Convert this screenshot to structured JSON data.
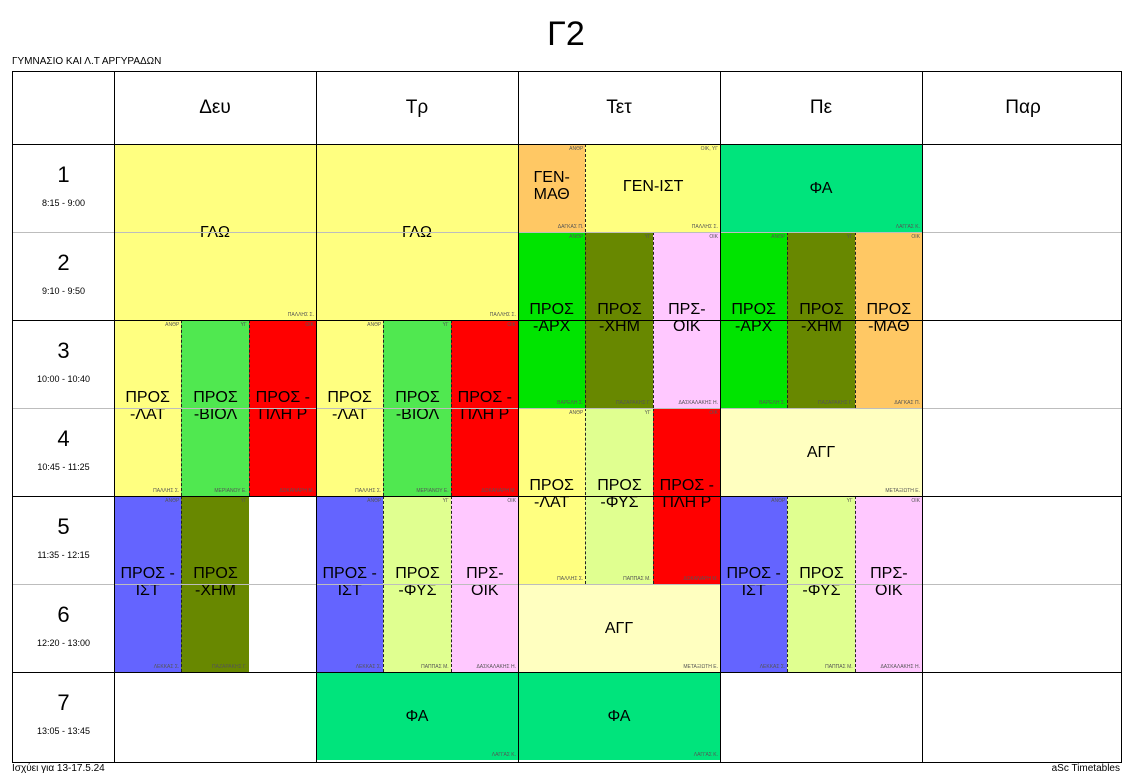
{
  "title": "Γ2",
  "school": "ΓΥΜΝΑΣΙΟ ΚΑΙ Λ.Τ ΑΡΓΥΡΑΔΩΝ",
  "valid_for": "Ισχύει για 13-17.5.24",
  "brand": "aSc Timetables",
  "days": [
    "Δευ",
    "Τρ",
    "Τετ",
    "Πε",
    "Παρ"
  ],
  "periods": [
    {
      "num": "1",
      "time": "8:15 - 9:00"
    },
    {
      "num": "2",
      "time": "9:10 - 9:50"
    },
    {
      "num": "3",
      "time": "10:00 - 10:40"
    },
    {
      "num": "4",
      "time": "10:45 - 11:25"
    },
    {
      "num": "5",
      "time": "11:35 - 12:15"
    },
    {
      "num": "6",
      "time": "12:20 - 13:00"
    },
    {
      "num": "7",
      "time": "13:05 - 13:45"
    }
  ],
  "colors": {
    "yellow": "#ffff80",
    "green": "#00e400",
    "olive": "#688800",
    "pink": "#ffc8ff",
    "red": "#ff0000",
    "orange": "#ffc864",
    "mint": "#00e47c",
    "lightgreen": "#50e850",
    "blue": "#6464ff",
    "palegreen": "#e0ff90",
    "cream": "#ffffc0"
  },
  "lessons": [
    {
      "subject": "ΓΛΩ",
      "teacher": "ΠΑΛΛΗΣ Σ.",
      "group": "",
      "day": 0,
      "start": 1,
      "span": 2,
      "part": 0,
      "parts": 1,
      "color": "yellow"
    },
    {
      "subject": "ΠΡΟΣ -ΛΑΤ",
      "teacher": "ΠΑΛΛΗΣ Σ.",
      "group": "ΑΝΘΡ",
      "day": 0,
      "start": 3,
      "span": 2,
      "part": 0,
      "parts": 3,
      "color": "yellow"
    },
    {
      "subject": "ΠΡΟΣ -ΒΙΟΛ",
      "teacher": "ΜΕΡΙΑΝΟΥ Ε.",
      "group": "ΥΓ",
      "day": 0,
      "start": 3,
      "span": 2,
      "part": 1,
      "parts": 3,
      "color": "lightgreen"
    },
    {
      "subject": "ΠΡΟΣ - ΠΛΗ Ρ",
      "teacher": "ΔΟΚΑΝΑΡΗ Μ.",
      "group": "ΟΙΚ",
      "day": 0,
      "start": 3,
      "span": 2,
      "part": 2,
      "parts": 3,
      "color": "red"
    },
    {
      "subject": "ΠΡΟΣ - ΙΣΤ",
      "teacher": "ΛΕΚΚΑΣ Σ.",
      "group": "ΑΝΘΡ",
      "day": 0,
      "start": 5,
      "span": 2,
      "part": 0,
      "parts": 3,
      "color": "blue"
    },
    {
      "subject": "ΠΡΟΣ -ΧΗΜ",
      "teacher": "ΠΑΖΑΡΑΚΗΣ Γ.",
      "group": "ΥΓ",
      "day": 0,
      "start": 5,
      "span": 2,
      "part": 1,
      "parts": 3,
      "color": "olive"
    },
    {
      "subject": "ΓΛΩ",
      "teacher": "ΠΑΛΛΗΣ Σ.",
      "group": "",
      "day": 1,
      "start": 1,
      "span": 2,
      "part": 0,
      "parts": 1,
      "color": "yellow"
    },
    {
      "subject": "ΠΡΟΣ -ΛΑΤ",
      "teacher": "ΠΑΛΛΗΣ Σ.",
      "group": "ΑΝΘΡ",
      "day": 1,
      "start": 3,
      "span": 2,
      "part": 0,
      "parts": 3,
      "color": "yellow"
    },
    {
      "subject": "ΠΡΟΣ -ΒΙΟΛ",
      "teacher": "ΜΕΡΙΑΝΟΥ Ε.",
      "group": "ΥΓ",
      "day": 1,
      "start": 3,
      "span": 2,
      "part": 1,
      "parts": 3,
      "color": "lightgreen"
    },
    {
      "subject": "ΠΡΟΣ - ΠΛΗ Ρ",
      "teacher": "ΔΟΚΑΝΑΡΗ Μ.",
      "group": "ΟΙΚ",
      "day": 1,
      "start": 3,
      "span": 2,
      "part": 2,
      "parts": 3,
      "color": "red"
    },
    {
      "subject": "ΠΡΟΣ - ΙΣΤ",
      "teacher": "ΛΕΚΚΑΣ Σ.",
      "group": "ΑΝΘΡ",
      "day": 1,
      "start": 5,
      "span": 2,
      "part": 0,
      "parts": 3,
      "color": "blue"
    },
    {
      "subject": "ΠΡΟΣ -ΦΥΣ",
      "teacher": "ΠΑΠΠΑΣ Μ.",
      "group": "ΥΓ",
      "day": 1,
      "start": 5,
      "span": 2,
      "part": 1,
      "parts": 3,
      "color": "palegreen"
    },
    {
      "subject": "ΠΡΣ- ΟΙΚ",
      "teacher": "ΔΑΣΚΑΛΑΚΗΣ Η.",
      "group": "ΟΙΚ",
      "day": 1,
      "start": 5,
      "span": 2,
      "part": 2,
      "parts": 3,
      "color": "pink"
    },
    {
      "subject": "ΦΑ",
      "teacher": "ΛΑΓΓΑΣ Κ.",
      "group": "",
      "day": 1,
      "start": 7,
      "span": 1,
      "part": 0,
      "parts": 1,
      "color": "mint"
    },
    {
      "subject": "ΓΕΝ- ΜΑΘ",
      "teacher": "ΔΑΓΚΑΣ Π.",
      "group": "ΑΝΘΡ",
      "day": 2,
      "start": 1,
      "span": 1,
      "part": 0,
      "parts": 3,
      "color": "orange"
    },
    {
      "subject": "ΓΕΝ-ΙΣΤ",
      "teacher": "ΠΑΛΛΗΣ Σ.",
      "group": "ΟΙΚ, ΥΓ",
      "day": 2,
      "start": 1,
      "span": 1,
      "part": 1,
      "parts": 3,
      "wide": 2,
      "color": "yellow"
    },
    {
      "subject": "ΠΡΟΣ -ΑΡΧ",
      "teacher": "ΒΑΡΕΛΗ Σ.",
      "group": "ΑΝΘΡ",
      "day": 2,
      "start": 2,
      "span": 2,
      "part": 0,
      "parts": 3,
      "color": "green"
    },
    {
      "subject": "ΠΡΟΣ -ΧΗΜ",
      "teacher": "ΠΑΖΑΡΑΚΗΣ Γ.",
      "group": "ΥΓ",
      "day": 2,
      "start": 2,
      "span": 2,
      "part": 1,
      "parts": 3,
      "color": "olive"
    },
    {
      "subject": "ΠΡΣ- ΟΙΚ",
      "teacher": "ΔΑΣΚΑΛΑΚΗΣ Η.",
      "group": "ΟΙΚ",
      "day": 2,
      "start": 2,
      "span": 2,
      "part": 2,
      "parts": 3,
      "color": "pink"
    },
    {
      "subject": "ΠΡΟΣ -ΛΑΤ",
      "teacher": "ΠΑΛΛΗΣ Σ.",
      "group": "ΑΝΘΡ",
      "day": 2,
      "start": 4,
      "span": 2,
      "part": 0,
      "parts": 3,
      "color": "yellow"
    },
    {
      "subject": "ΠΡΟΣ -ΦΥΣ",
      "teacher": "ΠΑΠΠΑΣ Μ.",
      "group": "ΥΓ",
      "day": 2,
      "start": 4,
      "span": 2,
      "part": 1,
      "parts": 3,
      "color": "palegreen"
    },
    {
      "subject": "ΠΡΟΣ - ΠΛΗ Ρ",
      "teacher": "ΔΟΚΑΝΑΡΗ Μ.",
      "group": "ΟΙΚ",
      "day": 2,
      "start": 4,
      "span": 2,
      "part": 2,
      "parts": 3,
      "color": "red"
    },
    {
      "subject": "ΑΓΓ",
      "teacher": "ΜΕΤΑΞΙΩΤΗ Ε.",
      "group": "",
      "day": 2,
      "start": 6,
      "span": 1,
      "part": 0,
      "parts": 1,
      "color": "cream"
    },
    {
      "subject": "ΦΑ",
      "teacher": "ΛΑΓΓΑΣ Κ.",
      "group": "",
      "day": 2,
      "start": 7,
      "span": 1,
      "part": 0,
      "parts": 1,
      "color": "mint"
    },
    {
      "subject": "ΦΑ",
      "teacher": "ΛΑΓΓΑΣ Κ.",
      "group": "",
      "day": 3,
      "start": 1,
      "span": 1,
      "part": 0,
      "parts": 1,
      "color": "mint"
    },
    {
      "subject": "ΠΡΟΣ -ΑΡΧ",
      "teacher": "ΒΑΡΕΛΗ Σ.",
      "group": "ΑΝΘΡ",
      "day": 3,
      "start": 2,
      "span": 2,
      "part": 0,
      "parts": 3,
      "color": "green"
    },
    {
      "subject": "ΠΡΟΣ -ΧΗΜ",
      "teacher": "ΠΑΖΑΡΑΚΗΣ Γ.",
      "group": "ΥΓ",
      "day": 3,
      "start": 2,
      "span": 2,
      "part": 1,
      "parts": 3,
      "color": "olive"
    },
    {
      "subject": "ΠΡΟΣ -ΜΑΘ",
      "teacher": "ΔΑΓΚΑΣ Π.",
      "group": "ΟΙΚ",
      "day": 3,
      "start": 2,
      "span": 2,
      "part": 2,
      "parts": 3,
      "color": "orange"
    },
    {
      "subject": "ΑΓΓ",
      "teacher": "ΜΕΤΑΞΙΩΤΗ Ε.",
      "group": "",
      "day": 3,
      "start": 4,
      "span": 1,
      "part": 0,
      "parts": 1,
      "color": "cream"
    },
    {
      "subject": "ΠΡΟΣ - ΙΣΤ",
      "teacher": "ΛΕΚΚΑΣ Σ.",
      "group": "ΑΝΘΡ",
      "day": 3,
      "start": 5,
      "span": 2,
      "part": 0,
      "parts": 3,
      "color": "blue"
    },
    {
      "subject": "ΠΡΟΣ -ΦΥΣ",
      "teacher": "ΠΑΠΠΑΣ Μ.",
      "group": "ΥΓ",
      "day": 3,
      "start": 5,
      "span": 2,
      "part": 1,
      "parts": 3,
      "color": "palegreen"
    },
    {
      "subject": "ΠΡΣ- ΟΙΚ",
      "teacher": "ΔΑΣΚΑΛΑΚΗΣ Η.",
      "group": "ΟΙΚ",
      "day": 3,
      "start": 5,
      "span": 2,
      "part": 2,
      "parts": 3,
      "color": "pink"
    }
  ]
}
